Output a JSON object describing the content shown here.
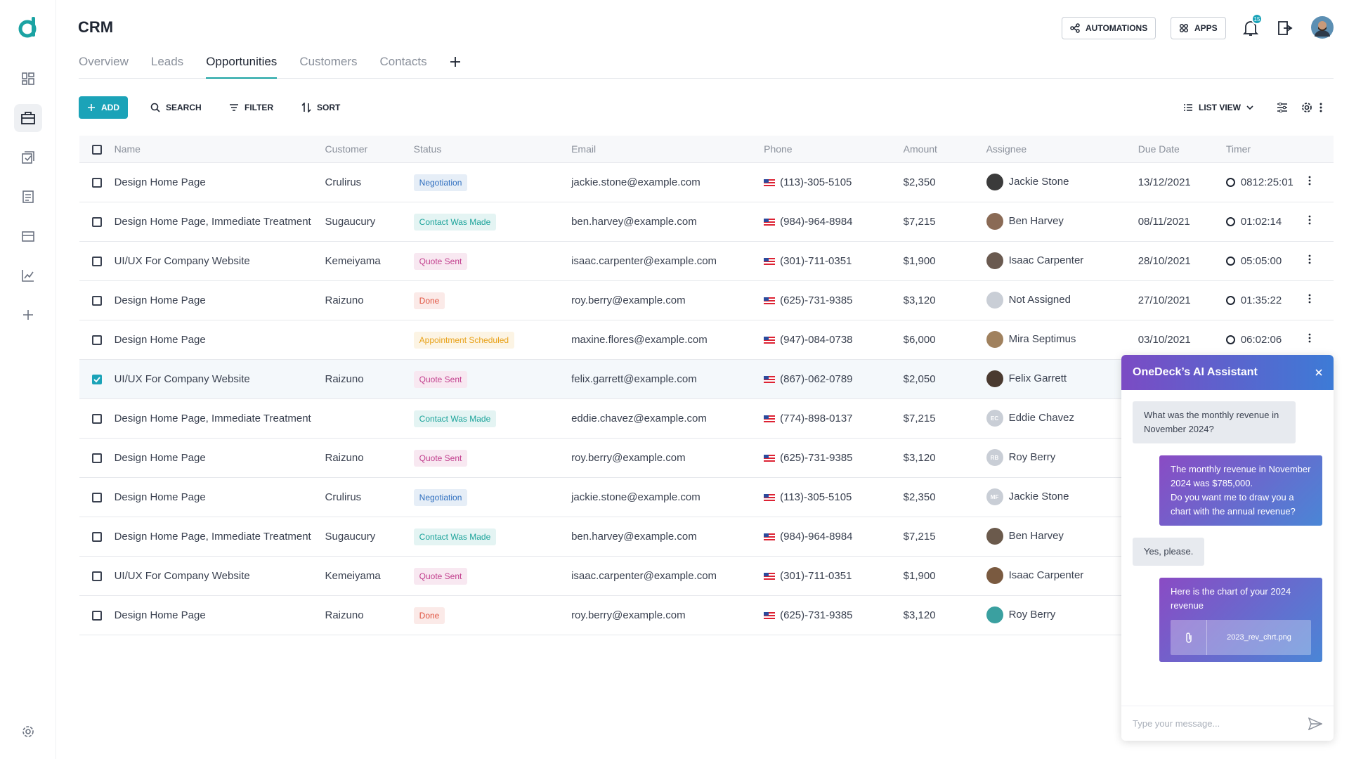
{
  "header": {
    "title": "CRM",
    "tabs": [
      "Overview",
      "Leads",
      "Opportunities",
      "Customers",
      "Contacts"
    ],
    "active_tab": 2,
    "buttons": [
      "AUTOMATIONS",
      "APPS"
    ],
    "notification_count": "15"
  },
  "toolbar": {
    "buttons": [
      "ADD",
      "SEARCH",
      "FILTER",
      "SORT"
    ],
    "view": "LIST VIEW"
  },
  "table": {
    "columns": [
      "Name",
      "Customer",
      "Status",
      "Email",
      "Phone",
      "Amount",
      "Assignee",
      "Due Date",
      "Timer"
    ],
    "rows": [
      {
        "name": "Design Home Page",
        "customer": "Crulirus",
        "status": "Negotiation",
        "status_color": "#2f6fbf",
        "email": "jackie.stone@example.com",
        "phone": "(113)-305-5105",
        "amount": "$2,350",
        "assignee": "Jackie Stone",
        "avatar_color": "#3b3b3b",
        "due": "13/12/2021",
        "timer": "0812:25:01"
      },
      {
        "name": "Design Home Page, Immediate Treatment",
        "customer": "Sugaucury",
        "status": "Contact Was Made",
        "status_color": "#1ba39a",
        "email": "ben.harvey@example.com",
        "phone": "(984)-964-8984",
        "amount": "$7,215",
        "assignee": "Ben Harvey",
        "avatar_color": "#8a6a55",
        "due": "08/11/2021",
        "timer": "01:02:14"
      },
      {
        "name": "UI/UX For Company Website",
        "customer": "Kemeiyama",
        "status": "Quote Sent",
        "status_color": "#c2408e",
        "email": "isaac.carpenter@example.com",
        "phone": "(301)-711-0351",
        "amount": "$1,900",
        "assignee": "Isaac Carpenter",
        "avatar_color": "#6a5a50",
        "due": "28/10/2021",
        "timer": "05:05:00"
      },
      {
        "name": "Design Home Page",
        "customer": "Raizuno",
        "status": "Done",
        "status_color": "#e0523f",
        "email": "roy.berry@example.com",
        "phone": "(625)-731-9385",
        "amount": "$3,120",
        "assignee": "Not Assigned",
        "avatar_color": "#c9ced6",
        "due": "27/10/2021",
        "timer": "01:35:22"
      },
      {
        "name": "Design Home Page",
        "status": "Appointment Scheduled",
        "status_color": "#e8a21a",
        "email": "maxine.flores@example.com",
        "phone": "(947)-084-0738",
        "amount": "$6,000",
        "assignee": "Mira Septimus",
        "avatar_color": "#a0815e",
        "due": "03/10/2021",
        "timer": "06:02:06"
      },
      {
        "name": "UI/UX For Company Website",
        "customer": "Raizuno",
        "status": "Quote Sent",
        "status_color": "#c2408e",
        "email": "felix.garrett@example.com",
        "phone": "(867)-062-0789",
        "amount": "$2,050",
        "assignee": "Felix Garrett",
        "avatar_color": "#4a3a30",
        "checked": true
      },
      {
        "name": "Design Home Page, Immediate Treatment",
        "status": "Contact Was Made",
        "status_color": "#1ba39a",
        "email": "eddie.chavez@example.com",
        "phone": "(774)-898-0137",
        "amount": "$7,215",
        "assignee": "Eddie Chavez",
        "avatar_color": "#c9ced6",
        "avatar_initials": "EC"
      },
      {
        "name": "Design Home Page",
        "customer": "Raizuno",
        "status": "Quote Sent",
        "status_color": "#c2408e",
        "email": "roy.berry@example.com",
        "phone": "(625)-731-9385",
        "amount": "$3,120",
        "assignee": "Roy Berry",
        "avatar_color": "#c9ced6",
        "avatar_initials": "RB"
      },
      {
        "name": "Design Home Page",
        "customer": "Crulirus",
        "status": "Negotiation",
        "status_color": "#2f6fbf",
        "email": "jackie.stone@example.com",
        "phone": "(113)-305-5105",
        "amount": "$2,350",
        "assignee": "Jackie Stone",
        "avatar_color": "#c9ced6",
        "avatar_initials": "MF"
      },
      {
        "name": "Design Home Page, Immediate Treatment",
        "customer": "Sugaucury",
        "status": "Contact Was Made",
        "status_color": "#1ba39a",
        "email": "ben.harvey@example.com",
        "phone": "(984)-964-8984",
        "amount": "$7,215",
        "assignee": "Ben Harvey",
        "avatar_color": "#6b5a4c"
      },
      {
        "name": "UI/UX For Company Website",
        "customer": "Kemeiyama",
        "status": "Quote Sent",
        "status_color": "#c2408e",
        "email": "isaac.carpenter@example.com",
        "phone": "(301)-711-0351",
        "amount": "$1,900",
        "assignee": "Isaac Carpenter",
        "avatar_color": "#7a5a40"
      },
      {
        "name": "Design Home Page",
        "customer": "Raizuno",
        "status": "Done",
        "status_color": "#e0523f",
        "email": "roy.berry@example.com",
        "phone": "(625)-731-9385",
        "amount": "$3,120",
        "assignee": "Roy Berry",
        "avatar_color": "#3aa0a0"
      }
    ]
  },
  "assistant": {
    "title": "OneDeck’s AI Assistant",
    "messages": [
      {
        "role": "user",
        "text": "What was the monthly revenue in November 2024?"
      },
      {
        "role": "ai",
        "text": "The monthly revenue in November 2024 was $785,000.\nDo you want me to draw you a chart with the annual revenue?"
      },
      {
        "role": "user",
        "text": "Yes, please."
      },
      {
        "role": "ai",
        "text": "Here is the chart of your 2024 revenue",
        "attachment": "2023_rev_chrt.png"
      }
    ],
    "placeholder": "Type your message..."
  }
}
